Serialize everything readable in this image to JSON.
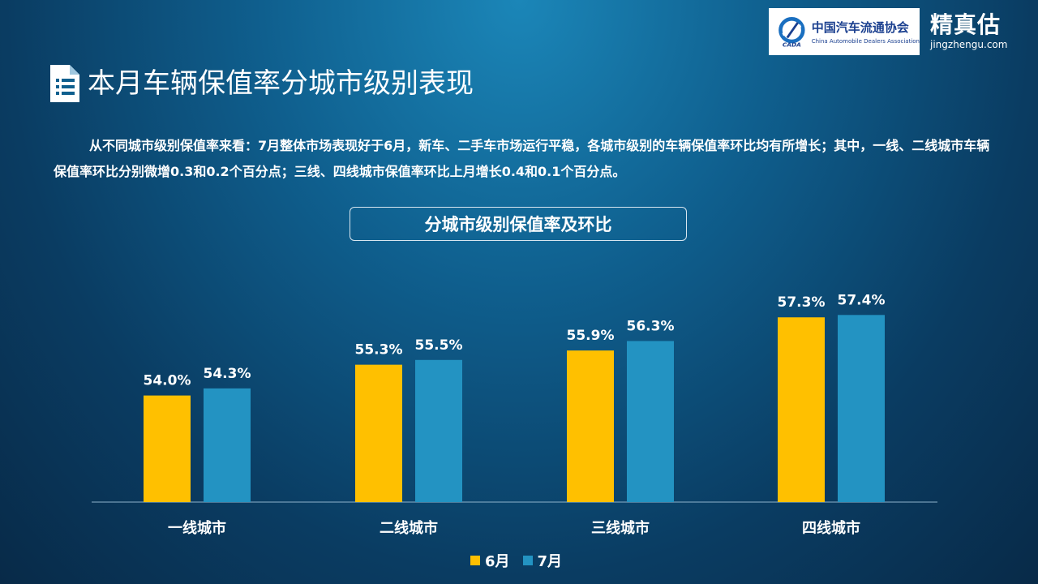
{
  "header": {
    "association_cn": "中国汽车流通协会",
    "association_en": "China Automobile Dealers Association",
    "brand_name": "精真估",
    "brand_url": "jingzhengu.com"
  },
  "page": {
    "title": "本月车辆保值率分城市级别表现",
    "description": "从不同城市级别保值率来看：7月整体市场表现好于6月，新车、二手车市场运行平稳，各城市级别的车辆保值率环比均有所增长；其中，一线、二线城市车辆保值率环比分别微增0.3和0.2个百分点；三线、四线城市保值率环比上月增长0.4和0.1个百分点。"
  },
  "chart_data": {
    "type": "bar",
    "title": "分城市级别保值率及环比",
    "categories": [
      "一线城市",
      "二线城市",
      "三线城市",
      "四线城市"
    ],
    "series": [
      {
        "name": "6月",
        "values": [
          54.0,
          55.3,
          55.9,
          57.3
        ],
        "labels": [
          "54.0%",
          "55.3%",
          "55.9%",
          "57.3%"
        ],
        "color": "#ffc000"
      },
      {
        "name": "7月",
        "values": [
          54.3,
          55.5,
          56.3,
          57.4
        ],
        "labels": [
          "54.3%",
          "55.5%",
          "56.3%",
          "57.4%"
        ],
        "color": "#2393c2"
      }
    ],
    "xlabel": "",
    "ylabel": "",
    "ylim": [
      49.5,
      58.5
    ],
    "grid": false,
    "legend": "bottom"
  }
}
